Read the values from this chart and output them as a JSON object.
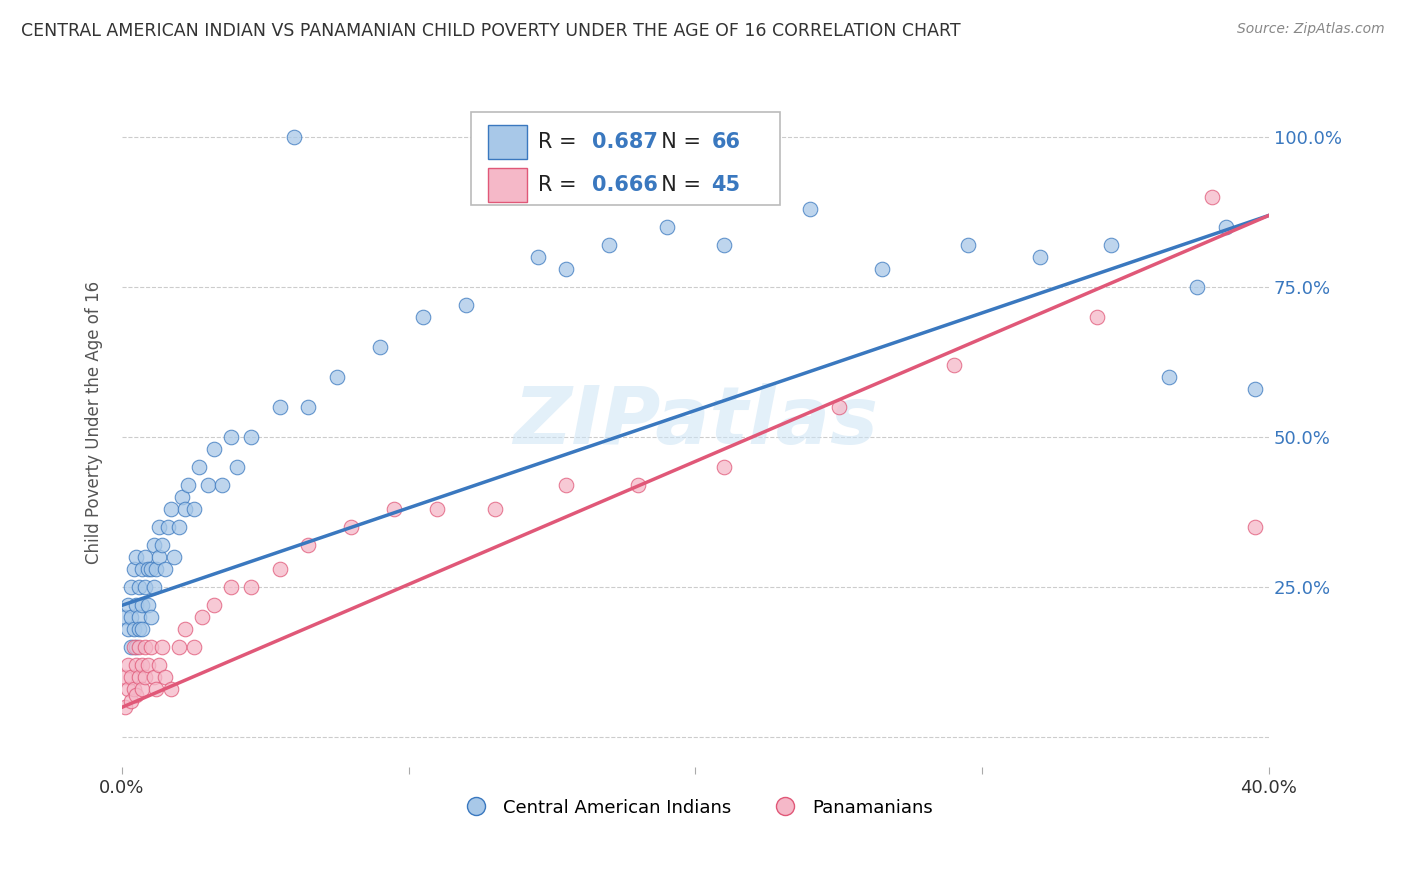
{
  "title": "CENTRAL AMERICAN INDIAN VS PANAMANIAN CHILD POVERTY UNDER THE AGE OF 16 CORRELATION CHART",
  "source": "Source: ZipAtlas.com",
  "ylabel": "Child Poverty Under the Age of 16",
  "xlabel": "",
  "xlim": [
    0.0,
    0.4
  ],
  "ylim": [
    -0.05,
    1.1
  ],
  "yticks": [
    0.0,
    0.25,
    0.5,
    0.75,
    1.0
  ],
  "ytick_labels": [
    "",
    "25.0%",
    "50.0%",
    "75.0%",
    "100.0%"
  ],
  "xticks": [
    0.0,
    0.1,
    0.2,
    0.3,
    0.4
  ],
  "xtick_labels": [
    "0.0%",
    "",
    "",
    "",
    "40.0%"
  ],
  "blue_R": 0.687,
  "blue_N": 66,
  "pink_R": 0.666,
  "pink_N": 45,
  "blue_color": "#a8c8e8",
  "blue_line_color": "#3a78bf",
  "pink_color": "#f5b8c8",
  "pink_line_color": "#e05878",
  "watermark": "ZIPatlas",
  "legend_label_blue": "Central American Indians",
  "legend_label_pink": "Panamanians",
  "blue_line_x0": 0.0,
  "blue_line_y0": 0.22,
  "blue_line_x1": 0.4,
  "blue_line_y1": 0.87,
  "pink_line_x0": 0.0,
  "pink_line_y0": 0.05,
  "pink_line_x1": 0.4,
  "pink_line_y1": 0.87,
  "blue_scatter_x": [
    0.001,
    0.002,
    0.002,
    0.003,
    0.003,
    0.003,
    0.004,
    0.004,
    0.005,
    0.005,
    0.005,
    0.006,
    0.006,
    0.006,
    0.007,
    0.007,
    0.007,
    0.008,
    0.008,
    0.009,
    0.009,
    0.01,
    0.01,
    0.011,
    0.011,
    0.012,
    0.013,
    0.013,
    0.014,
    0.015,
    0.016,
    0.017,
    0.018,
    0.02,
    0.021,
    0.022,
    0.023,
    0.025,
    0.027,
    0.03,
    0.032,
    0.035,
    0.038,
    0.04,
    0.045,
    0.055,
    0.065,
    0.075,
    0.09,
    0.105,
    0.12,
    0.145,
    0.155,
    0.17,
    0.19,
    0.21,
    0.24,
    0.265,
    0.295,
    0.32,
    0.345,
    0.365,
    0.375,
    0.385,
    0.395,
    0.06
  ],
  "blue_scatter_y": [
    0.2,
    0.22,
    0.18,
    0.15,
    0.25,
    0.2,
    0.18,
    0.28,
    0.15,
    0.22,
    0.3,
    0.2,
    0.25,
    0.18,
    0.22,
    0.28,
    0.18,
    0.25,
    0.3,
    0.22,
    0.28,
    0.2,
    0.28,
    0.25,
    0.32,
    0.28,
    0.3,
    0.35,
    0.32,
    0.28,
    0.35,
    0.38,
    0.3,
    0.35,
    0.4,
    0.38,
    0.42,
    0.38,
    0.45,
    0.42,
    0.48,
    0.42,
    0.5,
    0.45,
    0.5,
    0.55,
    0.55,
    0.6,
    0.65,
    0.7,
    0.72,
    0.8,
    0.78,
    0.82,
    0.85,
    0.82,
    0.88,
    0.78,
    0.82,
    0.8,
    0.82,
    0.6,
    0.75,
    0.85,
    0.58,
    1.0
  ],
  "pink_scatter_x": [
    0.001,
    0.001,
    0.002,
    0.002,
    0.003,
    0.003,
    0.004,
    0.004,
    0.005,
    0.005,
    0.006,
    0.006,
    0.007,
    0.007,
    0.008,
    0.008,
    0.009,
    0.01,
    0.011,
    0.012,
    0.013,
    0.014,
    0.015,
    0.017,
    0.02,
    0.022,
    0.025,
    0.028,
    0.032,
    0.038,
    0.045,
    0.055,
    0.065,
    0.08,
    0.095,
    0.11,
    0.13,
    0.155,
    0.18,
    0.21,
    0.25,
    0.29,
    0.34,
    0.38,
    0.395
  ],
  "pink_scatter_y": [
    0.05,
    0.1,
    0.08,
    0.12,
    0.06,
    0.1,
    0.08,
    0.15,
    0.07,
    0.12,
    0.1,
    0.15,
    0.08,
    0.12,
    0.1,
    0.15,
    0.12,
    0.15,
    0.1,
    0.08,
    0.12,
    0.15,
    0.1,
    0.08,
    0.15,
    0.18,
    0.15,
    0.2,
    0.22,
    0.25,
    0.25,
    0.28,
    0.32,
    0.35,
    0.38,
    0.38,
    0.38,
    0.42,
    0.42,
    0.45,
    0.55,
    0.62,
    0.7,
    0.9,
    0.35
  ],
  "background_color": "#ffffff",
  "grid_color": "#cccccc",
  "title_color": "#333333",
  "axis_label_color": "#555555"
}
